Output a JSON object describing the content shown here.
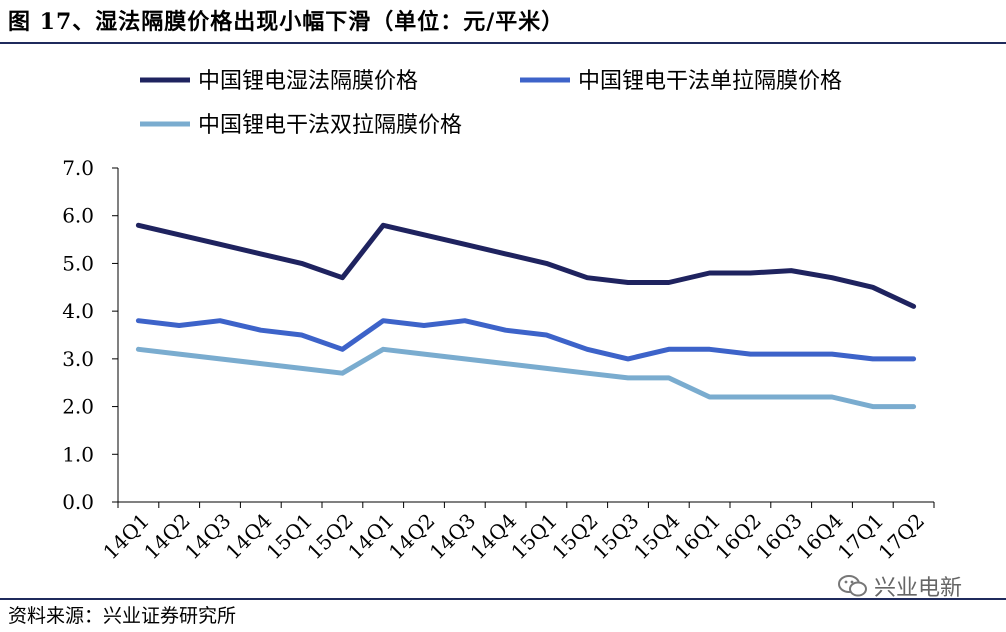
{
  "header": {
    "title": "图 17、湿法隔膜价格出现小幅下滑（单位：元/平米）"
  },
  "footer": {
    "source": "资料来源：兴业证券研究所",
    "watermark_text": "兴业电新",
    "watermark_icon": "wechat-icon"
  },
  "chart_data": {
    "type": "line",
    "categories": [
      "14Q1",
      "14Q2",
      "14Q3",
      "14Q4",
      "15Q1",
      "15Q2",
      "14Q1",
      "14Q2",
      "14Q3",
      "14Q4",
      "15Q1",
      "15Q2",
      "15Q3",
      "15Q4",
      "16Q1",
      "16Q2",
      "16Q3",
      "16Q4",
      "17Q1",
      "17Q2"
    ],
    "ylim": [
      0,
      7
    ],
    "y_ticks": [
      "0.0",
      "1.0",
      "2.0",
      "3.0",
      "4.0",
      "5.0",
      "6.0",
      "7.0"
    ],
    "legend_position": "top",
    "series": [
      {
        "name": "中国锂电湿法隔膜价格",
        "color": "#1f235f",
        "values": [
          5.8,
          5.6,
          5.4,
          5.2,
          5.0,
          4.7,
          5.8,
          5.6,
          5.4,
          5.2,
          5.0,
          4.7,
          4.6,
          4.6,
          4.8,
          4.8,
          4.85,
          4.7,
          4.5,
          4.1
        ]
      },
      {
        "name": "中国锂电干法单拉隔膜价格",
        "color": "#3d63c9",
        "values": [
          3.8,
          3.7,
          3.8,
          3.6,
          3.5,
          3.2,
          3.8,
          3.7,
          3.8,
          3.6,
          3.5,
          3.2,
          3.0,
          3.2,
          3.2,
          3.1,
          3.1,
          3.1,
          3.0,
          3.0
        ]
      },
      {
        "name": "中国锂电干法双拉隔膜价格",
        "color": "#7aaccf",
        "values": [
          3.2,
          3.1,
          3.0,
          2.9,
          2.8,
          2.7,
          3.2,
          3.1,
          3.0,
          2.9,
          2.8,
          2.7,
          2.6,
          2.6,
          2.2,
          2.2,
          2.2,
          2.2,
          2.0,
          2.0
        ]
      }
    ]
  }
}
